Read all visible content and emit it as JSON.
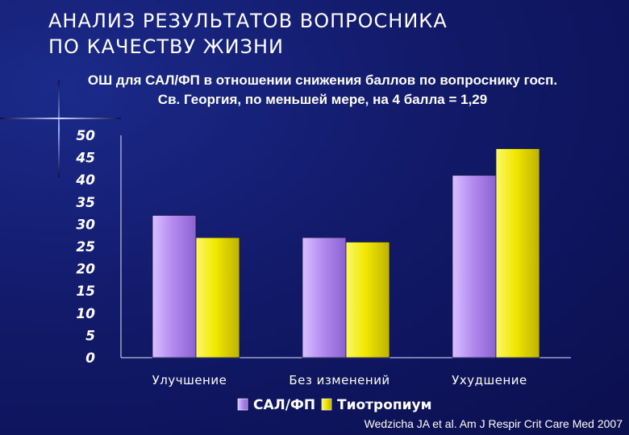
{
  "header": {
    "title_line1": "АНАЛИЗ РЕЗУЛЬТАТОВ ВОПРОСНИКА",
    "title_line2": "ПО КАЧЕСТВУ ЖИЗНИ",
    "subtitle_line1": "ОШ для САЛ/ФП в отношении снижения баллов по вопроснику госп.",
    "subtitle_line2": "Св. Георгия, по меньшей мере, на 4 балла = 1,29"
  },
  "source": "Wedzicha JA et al. Am J Respir Crit Care Med 2007",
  "colors": {
    "background": "#121a6a",
    "series1": "#b48cf0",
    "series2": "#f0e800"
  },
  "chart_data": {
    "type": "bar",
    "categories": [
      "Улучшение",
      "Без изменений",
      "Ухудшение"
    ],
    "series": [
      {
        "name": "САЛ/ФП",
        "values": [
          32,
          27,
          41
        ]
      },
      {
        "name": "Тиотропиум",
        "values": [
          27,
          26,
          47
        ]
      }
    ],
    "yticks": [
      "50",
      "45",
      "40",
      "35",
      "30",
      "25",
      "20",
      "15",
      "10",
      "5",
      "0"
    ],
    "ylim": [
      0,
      50
    ],
    "legend_position": "bottom",
    "grid": false
  }
}
